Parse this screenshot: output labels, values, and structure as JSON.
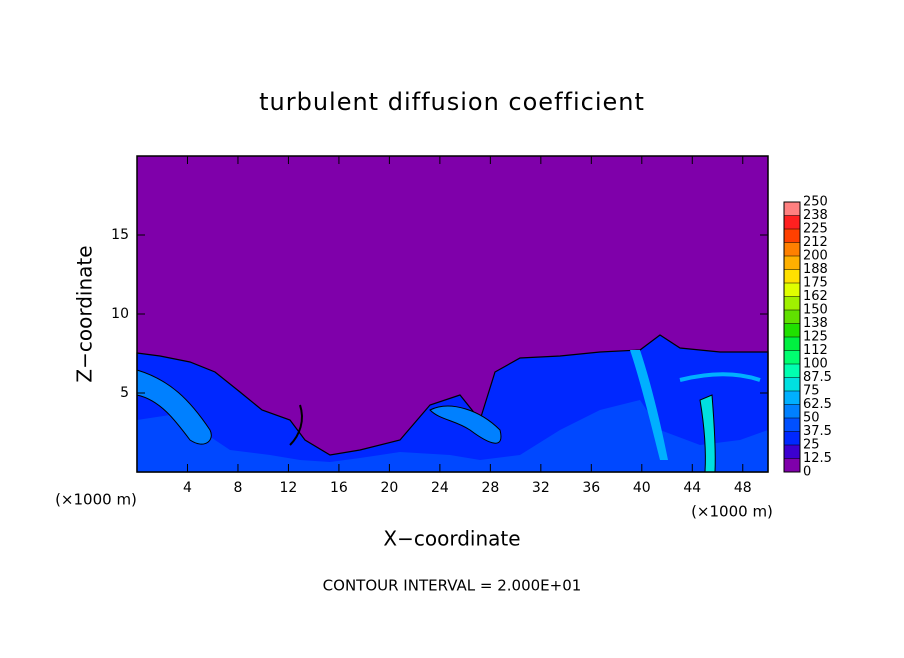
{
  "chart_data": {
    "type": "contour",
    "title": "turbulent diffusion coefficient",
    "x_label": "X−coordinate",
    "y_label": "Z−coordinate",
    "x_unit_label": "(×1000 m)",
    "footnote": "CONTOUR INTERVAL = 2.000E+01",
    "xlim": [
      0,
      50
    ],
    "xticks": [
      4,
      8,
      12,
      16,
      20,
      24,
      28,
      32,
      36,
      40,
      44,
      48
    ],
    "ylim": [
      0,
      20
    ],
    "yticks": [
      5,
      10,
      15
    ],
    "colorbar": {
      "lim": [
        0,
        250
      ],
      "ticks": [
        0,
        12.5,
        25,
        37.5,
        50,
        62.5,
        75,
        87.5,
        100,
        {
          "value": 112.5,
          "label": "112"
        },
        125,
        {
          "value": 137.5,
          "label": "138"
        },
        150,
        {
          "value": 162.5,
          "label": "162"
        },
        175,
        {
          "value": 187.5,
          "label": "188"
        },
        200,
        {
          "value": 212.5,
          "label": "212"
        },
        225,
        {
          "value": 237.5,
          "label": "238"
        },
        250
      ],
      "colors": [
        "#7f00aa",
        "#3c00d0",
        "#0028ff",
        "#0050ff",
        "#0080ff",
        "#00b0ff",
        "#00e0e0",
        "#00ffb0",
        "#00ff70",
        "#00f040",
        "#20e000",
        "#60e000",
        "#a0f000",
        "#e0ff00",
        "#ffe000",
        "#ffb000",
        "#ff8000",
        "#ff4000",
        "#ff2020",
        "#ff8080"
      ]
    }
  }
}
